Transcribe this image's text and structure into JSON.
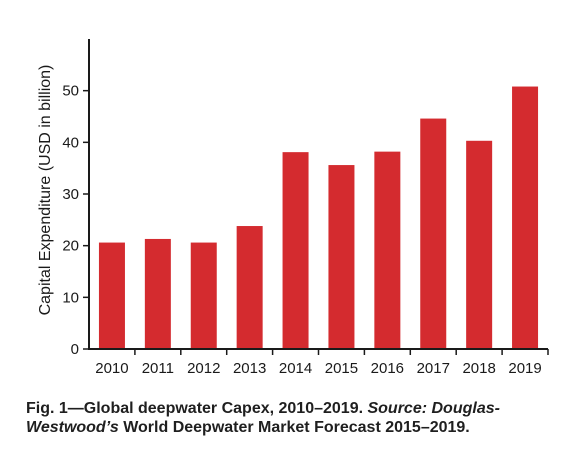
{
  "chart_data": {
    "type": "bar",
    "categories": [
      "2010",
      "2011",
      "2012",
      "2013",
      "2014",
      "2015",
      "2016",
      "2017",
      "2018",
      "2019"
    ],
    "values": [
      20.6,
      21.3,
      20.6,
      23.8,
      38.1,
      35.6,
      38.2,
      44.6,
      40.3,
      50.8
    ],
    "title": "",
    "xlabel": "",
    "ylabel": "Capital Expenditure (USD in billion)",
    "ylim": [
      0,
      60
    ],
    "yticks": [
      0,
      10,
      20,
      30,
      40,
      50
    ],
    "grid": false,
    "bar_color": "#d42b2f",
    "axis_color": "#1a1a1a"
  },
  "caption": {
    "prefix": "Fig. 1—Global deepwater Capex, 2010–2019. ",
    "source_italic": "Source: Douglas-Westwood’s",
    "rest": " World Deepwater Market Forecast 2015–2019."
  }
}
